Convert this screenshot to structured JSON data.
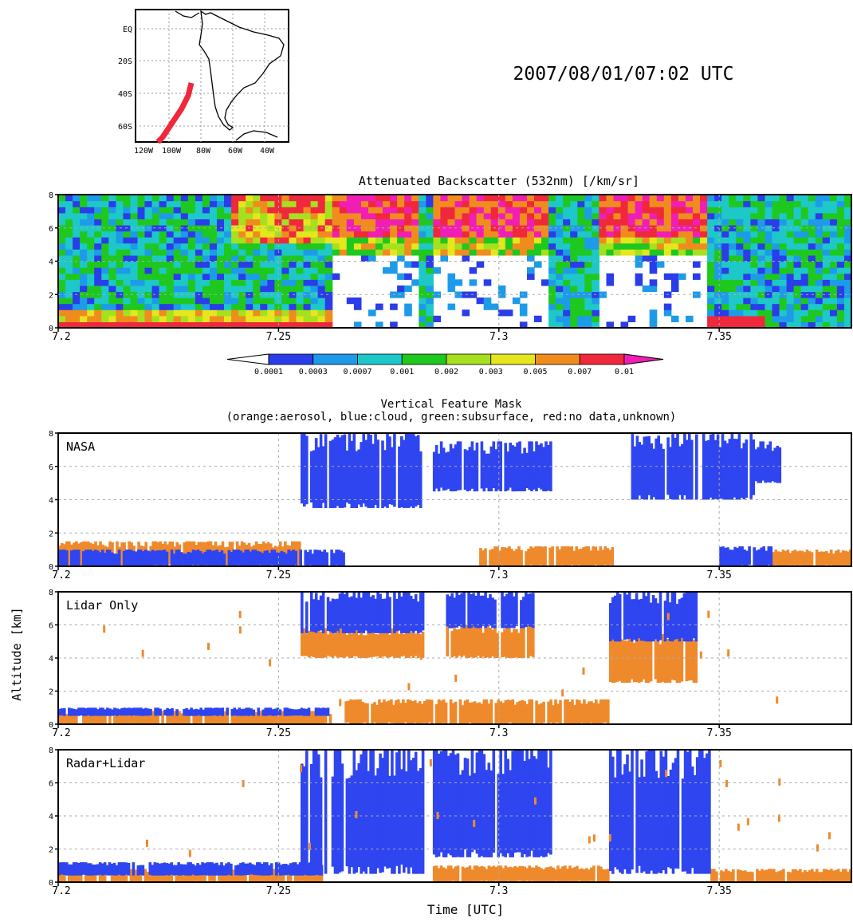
{
  "timestamp": "2007/08/01/07:02 UTC",
  "map": {
    "lat_labels": [
      "EQ",
      "20S",
      "40S",
      "60S"
    ],
    "lon_labels": [
      "120W",
      "100W",
      "80W",
      "60W",
      "40W"
    ]
  },
  "backscatter": {
    "title": "Attenuated Backscatter (532nm) [/km/sr]",
    "colorbar_labels": [
      "0.0001",
      "0.0003",
      "0.0007",
      "0.001",
      "0.002",
      "0.003",
      "0.005",
      "0.007",
      "0.01"
    ],
    "colorbar_colors": [
      "#ffffff",
      "#2a3de8",
      "#1e9be8",
      "#1ec8c8",
      "#1ec81e",
      "#a6e01e",
      "#e6e61e",
      "#f08c1e",
      "#f0283c",
      "#f01eb4"
    ]
  },
  "vfm": {
    "title_line1": "Vertical Feature Mask",
    "title_line2": "(orange:aerosol, blue:cloud, green:subsurface, red:no data,unknown)",
    "panel_labels": [
      "NASA",
      "Lidar Only",
      "Radar+Lidar"
    ]
  },
  "axes": {
    "ylabel": "Altitude [km]",
    "xlabel": "Time [UTC]",
    "x_ticks": [
      "7.2",
      "7.25",
      "7.3",
      "7.35"
    ],
    "y_ticks": [
      "0",
      "2",
      "4",
      "6",
      "8"
    ]
  },
  "colors": {
    "cloud": "#2f45f0",
    "aerosol": "#ef8a2c"
  },
  "chart_data": [
    {
      "type": "heatmap",
      "title": "Attenuated Backscatter (532nm) [/km/sr]",
      "xlabel": "",
      "ylabel": "",
      "xlim": [
        7.2,
        7.38
      ],
      "ylim": [
        0,
        8
      ],
      "color_levels": [
        0.0001,
        0.0003,
        0.0007,
        0.001,
        0.002,
        0.003,
        0.005,
        0.007,
        0.01
      ]
    },
    {
      "type": "heatmap",
      "title": "NASA",
      "xlim": [
        7.2,
        7.38
      ],
      "ylim": [
        0,
        8
      ],
      "categories": [
        "aerosol",
        "cloud"
      ],
      "cloud_layers": [
        {
          "x": [
            7.255,
            7.283
          ],
          "y": [
            3.5,
            8
          ]
        },
        {
          "x": [
            7.285,
            7.312
          ],
          "y": [
            4.5,
            7.5
          ]
        },
        {
          "x": [
            7.33,
            7.358
          ],
          "y": [
            4,
            8
          ]
        },
        {
          "x": [
            7.358,
            7.364
          ],
          "y": [
            5,
            7.5
          ]
        },
        {
          "x": [
            7.2,
            7.265
          ],
          "y": [
            0,
            1
          ]
        },
        {
          "x": [
            7.35,
            7.362
          ],
          "y": [
            0,
            1.2
          ]
        }
      ],
      "aerosol_layers": [
        {
          "x": [
            7.2,
            7.255
          ],
          "y": [
            0,
            1.5
          ]
        },
        {
          "x": [
            7.295,
            7.326
          ],
          "y": [
            0,
            1.2
          ]
        },
        {
          "x": [
            7.362,
            7.38
          ],
          "y": [
            0,
            1
          ]
        }
      ]
    },
    {
      "type": "heatmap",
      "title": "Lidar Only",
      "xlim": [
        7.2,
        7.38
      ],
      "ylim": [
        0,
        8
      ],
      "categories": [
        "aerosol",
        "cloud"
      ],
      "cloud_layers": [
        {
          "x": [
            7.255,
            7.283
          ],
          "y": [
            5.5,
            8
          ]
        },
        {
          "x": [
            7.288,
            7.308
          ],
          "y": [
            5.8,
            8
          ]
        },
        {
          "x": [
            7.325,
            7.345
          ],
          "y": [
            5,
            8
          ]
        },
        {
          "x": [
            7.2,
            7.262
          ],
          "y": [
            0.5,
            1
          ]
        }
      ],
      "aerosol_layers": [
        {
          "x": [
            7.255,
            7.283
          ],
          "y": [
            4,
            5.8
          ]
        },
        {
          "x": [
            7.288,
            7.308
          ],
          "y": [
            4,
            6
          ]
        },
        {
          "x": [
            7.325,
            7.345
          ],
          "y": [
            2.5,
            5.5
          ]
        },
        {
          "x": [
            7.2,
            7.262
          ],
          "y": [
            0,
            0.8
          ]
        },
        {
          "x": [
            7.265,
            7.325
          ],
          "y": [
            0,
            1.5
          ]
        }
      ]
    },
    {
      "type": "heatmap",
      "title": "Radar+Lidar",
      "xlim": [
        7.2,
        7.38
      ],
      "ylim": [
        0,
        8
      ],
      "categories": [
        "aerosol",
        "cloud"
      ],
      "cloud_layers": [
        {
          "x": [
            7.255,
            7.283
          ],
          "y": [
            0.5,
            8
          ]
        },
        {
          "x": [
            7.285,
            7.312
          ],
          "y": [
            1.5,
            8
          ]
        },
        {
          "x": [
            7.325,
            7.348
          ],
          "y": [
            0.5,
            8
          ]
        },
        {
          "x": [
            7.2,
            7.26
          ],
          "y": [
            0.4,
            1.2
          ]
        }
      ],
      "aerosol_layers": [
        {
          "x": [
            7.2,
            7.26
          ],
          "y": [
            0,
            0.8
          ]
        },
        {
          "x": [
            7.285,
            7.325
          ],
          "y": [
            0,
            1
          ]
        },
        {
          "x": [
            7.348,
            7.38
          ],
          "y": [
            0,
            0.8
          ]
        }
      ]
    }
  ]
}
